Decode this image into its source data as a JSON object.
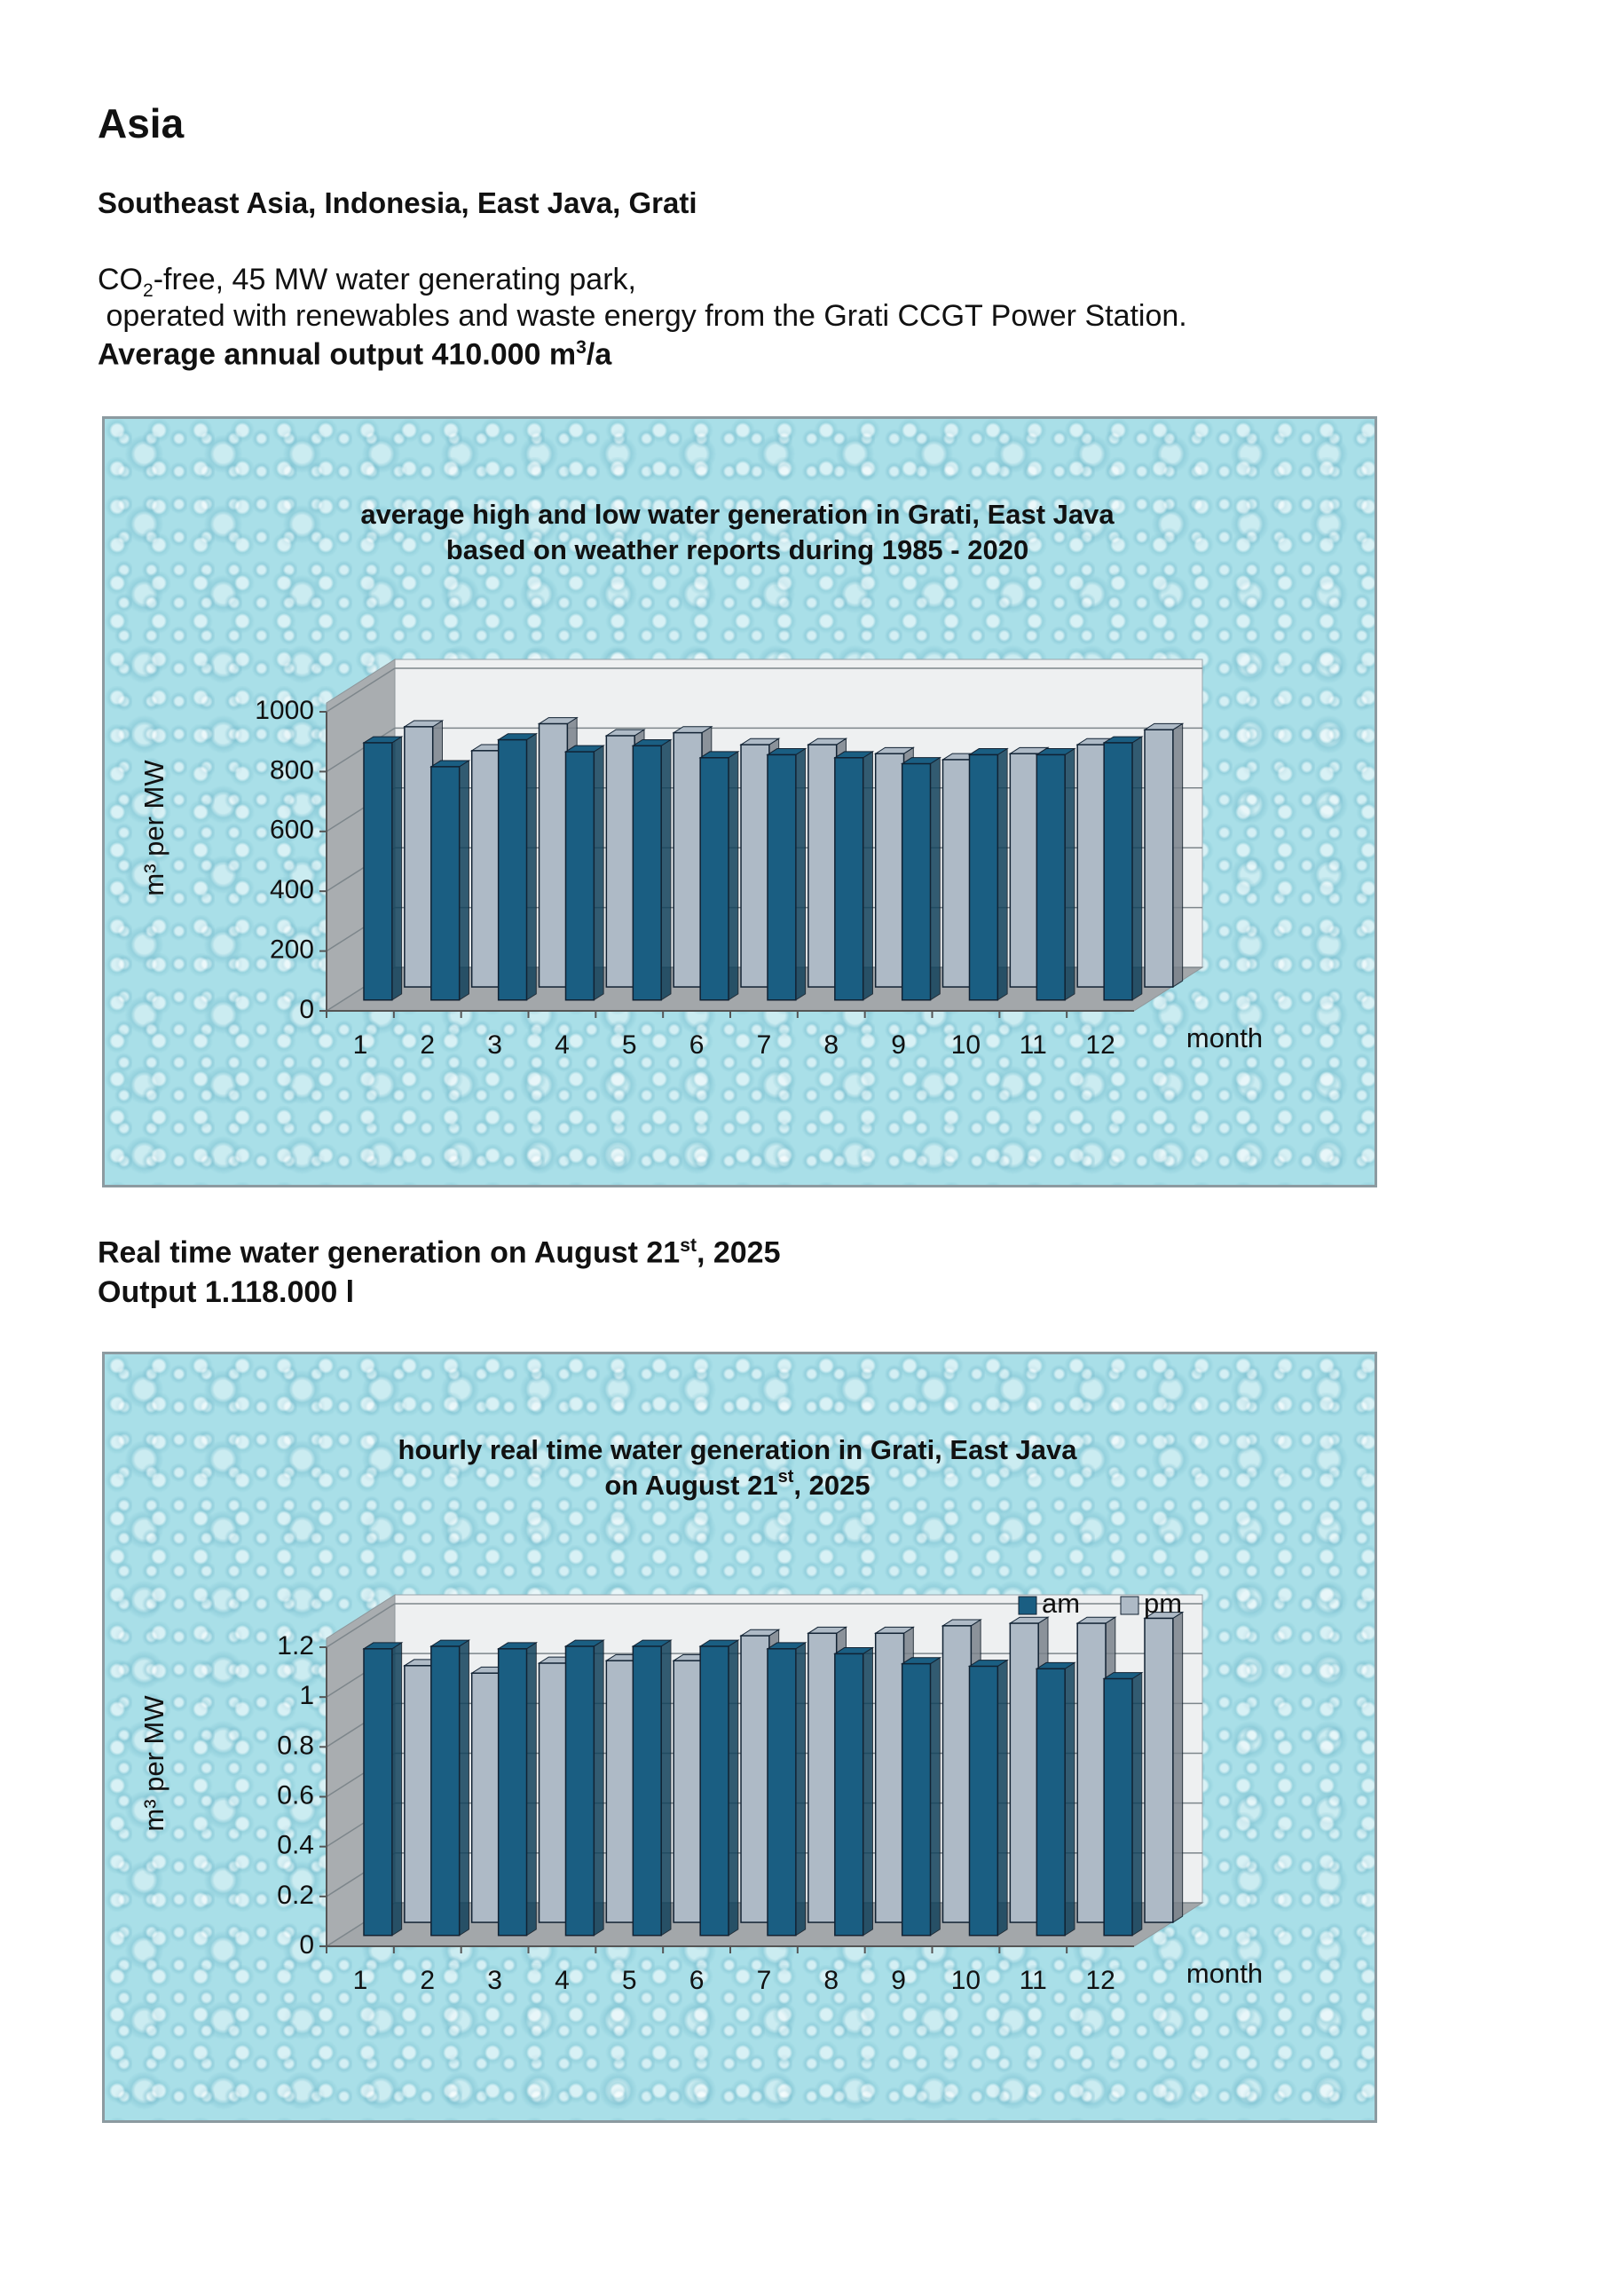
{
  "heading": "Asia",
  "subheading": "Southeast Asia, Indonesia, East Java, Grati",
  "intro": [
    [
      {
        "text": "CO"
      },
      {
        "text": "2",
        "script": "sub"
      },
      {
        "text": "-free, 45 MW water generating park,"
      }
    ],
    [
      {
        "text": " operated with renewables and waste energy from the Grati CCGT Power Station."
      }
    ]
  ],
  "output_line": [
    {
      "text": "Average annual output 410.000 m"
    },
    {
      "text": "3",
      "script": "sup"
    },
    {
      "text": "/a"
    }
  ],
  "realtime": [
    [
      {
        "text": "Real time water generation on August 21"
      },
      {
        "text": "st",
        "script": "sup"
      },
      {
        "text": ", 2025"
      }
    ],
    [
      {
        "text": "Output 1.118.000 l"
      }
    ]
  ],
  "chart_data": [
    {
      "type": "bar3d",
      "title": [
        [
          {
            "text": "average high and low water generation in Grati, East Java"
          }
        ],
        [
          {
            "text": "based on weather reports during 1985 - 2020"
          }
        ]
      ],
      "y_label": "m³ per MW",
      "x_label": "month",
      "categories": [
        "1",
        "2",
        "3",
        "4",
        "5",
        "6",
        "7",
        "8",
        "9",
        "10",
        "11",
        "12"
      ],
      "series": [
        {
          "color": "#1a5e82",
          "values": [
            860,
            780,
            870,
            830,
            850,
            810,
            820,
            810,
            790,
            820,
            820,
            860
          ]
        },
        {
          "color": "#aebac6",
          "values": [
            870,
            790,
            880,
            840,
            850,
            810,
            810,
            780,
            760,
            780,
            810,
            860
          ]
        }
      ],
      "ylim": [
        0,
        1000
      ],
      "yticks": [
        0,
        200,
        400,
        600,
        800,
        1000
      ],
      "grid": true
    },
    {
      "type": "bar3d",
      "title": [
        [
          {
            "text": "hourly real time water generation in Grati, East Java"
          }
        ],
        [
          {
            "text": "on August 21"
          },
          {
            "text": "st",
            "script": "sup"
          },
          {
            "text": ", 2025"
          }
        ]
      ],
      "y_label": "m³ per MW",
      "x_label": "month",
      "categories": [
        "1",
        "2",
        "3",
        "4",
        "5",
        "6",
        "7",
        "8",
        "9",
        "10",
        "11",
        "12"
      ],
      "series": [
        {
          "name": "am",
          "color": "#1a5e82",
          "values": [
            1.15,
            1.16,
            1.15,
            1.16,
            1.16,
            1.16,
            1.15,
            1.13,
            1.09,
            1.08,
            1.07,
            1.03
          ]
        },
        {
          "name": "pm",
          "color": "#aebac6",
          "values": [
            1.03,
            1.0,
            1.04,
            1.05,
            1.05,
            1.15,
            1.16,
            1.16,
            1.19,
            1.2,
            1.2,
            1.22
          ]
        }
      ],
      "ylim": [
        0,
        1.2
      ],
      "yticks": [
        0,
        0.2,
        0.4,
        0.6,
        0.8,
        1,
        1.2
      ],
      "grid": true,
      "legend": "top-right"
    }
  ]
}
